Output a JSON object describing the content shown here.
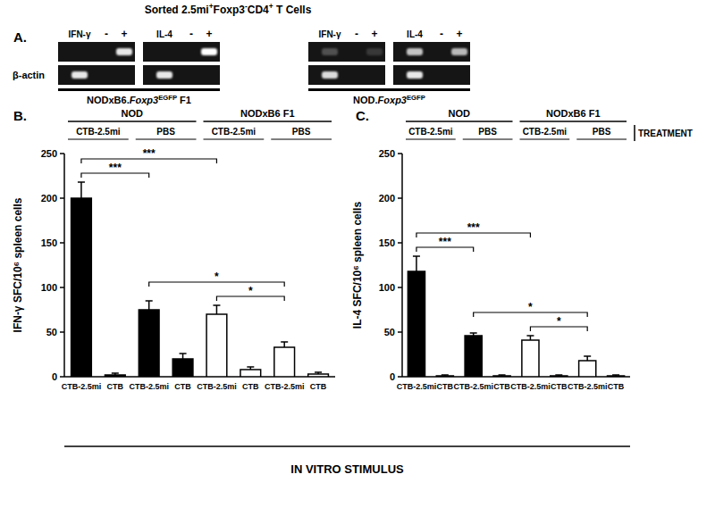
{
  "gel": {
    "label": "A.",
    "title": [
      {
        "text": "Sorted 2.5mi"
      },
      {
        "text": "+",
        "sup": true
      },
      {
        "text": "Foxp3"
      },
      {
        "text": "-",
        "sup": true
      },
      {
        "text": "CD4"
      },
      {
        "text": "+",
        "sup": true
      },
      {
        "text": " T Cells"
      }
    ],
    "row_label": "β-actin",
    "lanes": [
      "-",
      "+"
    ],
    "strains": [
      {
        "name": [
          {
            "text": "NODxB6."
          },
          {
            "text": "Foxp3",
            "italic": true
          },
          {
            "text": "EGFP",
            "sup": true
          },
          {
            "text": " F1"
          }
        ],
        "groups": [
          {
            "gene": "IFN-γ",
            "bands": [
              [
                0,
                0,
                0.9
              ],
              [
                0.9,
                0,
                0
              ]
            ]
          },
          {
            "gene": "IL-4",
            "bands": [
              [
                0,
                0,
                1
              ],
              [
                0.9,
                0,
                0
              ]
            ]
          }
        ]
      },
      {
        "name": [
          {
            "text": "NOD."
          },
          {
            "text": "Foxp3",
            "italic": true
          },
          {
            "text": "EGFP",
            "sup": true
          }
        ],
        "groups": [
          {
            "gene": "IFN-γ",
            "bands": [
              [
                0.25,
                0,
                0.15
              ],
              [
                0.85,
                0,
                0
              ]
            ]
          },
          {
            "gene": "IL-4",
            "bands": [
              [
                0.75,
                0,
                0.7
              ],
              [
                0.9,
                0,
                0
              ]
            ]
          }
        ]
      }
    ]
  },
  "chart_data": [
    {
      "type": "bar",
      "title": "B.",
      "ylabel": "IFN-γ SFC/10⁶ spleen cells",
      "categories": [
        "CTB-2.5mi",
        "CTB",
        "CTB-2.5mi",
        "CTB",
        "CTB-2.5mi",
        "CTB",
        "CTB-2.5mi",
        "CTB"
      ],
      "values": [
        200,
        2,
        75,
        20,
        70,
        8,
        33,
        3
      ],
      "errors": [
        18,
        2,
        10,
        6,
        10,
        3,
        6,
        2
      ],
      "colors": [
        "#000000",
        "#000000",
        "#000000",
        "#000000",
        "#ffffff",
        "#ffffff",
        "#ffffff",
        "#ffffff"
      ],
      "groups": [
        {
          "name": "NOD",
          "treatments": [
            "CTB-2.5mi",
            "PBS"
          ]
        },
        {
          "name": "NODxB6 F1",
          "treatments": [
            "CTB-2.5mi",
            "PBS"
          ]
        }
      ],
      "significance": [
        {
          "between": [
            0,
            2
          ],
          "text": "***"
        },
        {
          "between": [
            0,
            4
          ],
          "text": "***"
        },
        {
          "between": [
            2,
            6
          ],
          "text": "*"
        },
        {
          "between": [
            4,
            6
          ],
          "text": "*"
        }
      ],
      "ylim": [
        0,
        250
      ],
      "yticks": [
        0,
        50,
        100,
        150,
        200,
        250
      ],
      "grid": false
    },
    {
      "type": "bar",
      "title": "C.",
      "ylabel": "IL-4 SFC/10⁶ spleen cells",
      "categories": [
        "CTB-2.5mi",
        "CTB",
        "CTB-2.5mi",
        "CTB",
        "CTB-2.5mi",
        "CTB",
        "CTB-2.5mi",
        "CTB"
      ],
      "values": [
        118,
        1,
        46,
        1,
        41,
        1,
        18,
        1
      ],
      "errors": [
        17,
        1,
        3,
        1,
        5,
        1,
        5,
        1
      ],
      "colors": [
        "#000000",
        "#000000",
        "#000000",
        "#000000",
        "#ffffff",
        "#ffffff",
        "#ffffff",
        "#ffffff"
      ],
      "groups": [
        {
          "name": "NOD",
          "treatments": [
            "CTB-2.5mi",
            "PBS"
          ]
        },
        {
          "name": "NODxB6 F1",
          "treatments": [
            "CTB-2.5mi",
            "PBS"
          ]
        }
      ],
      "treatment_label": "TREATMENT",
      "significance": [
        {
          "between": [
            0,
            2
          ],
          "text": "***"
        },
        {
          "between": [
            0,
            4
          ],
          "text": "***"
        },
        {
          "between": [
            2,
            6
          ],
          "text": "*"
        },
        {
          "between": [
            4,
            6
          ],
          "text": "*"
        }
      ],
      "ylim": [
        0,
        250
      ],
      "yticks": [
        0,
        50,
        100,
        150,
        200,
        250
      ],
      "grid": false
    }
  ],
  "footer": "IN VITRO STIMULUS"
}
